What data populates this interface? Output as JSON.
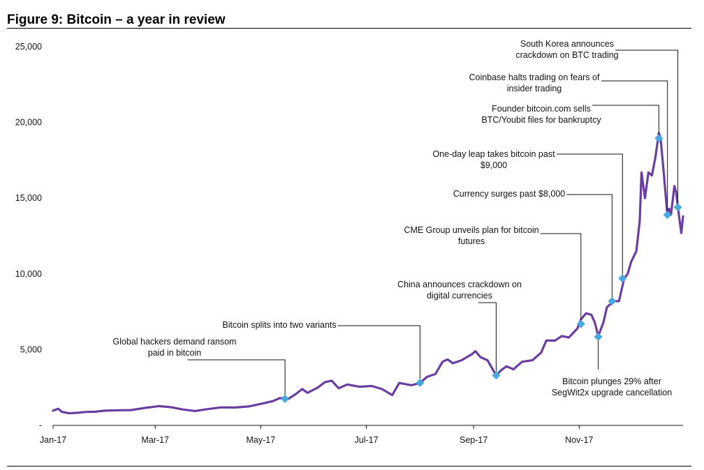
{
  "figure_title": "Figure 9: Bitcoin – a year in review",
  "colors": {
    "line": "#6a3da0",
    "marker": "#4aa8e0",
    "text": "#111111"
  },
  "chart_data": {
    "type": "line",
    "title": "Figure 9: Bitcoin – a year in review",
    "xlabel": "",
    "ylabel": "",
    "ylim": [
      0,
      25000
    ],
    "yticks": [
      0,
      5000,
      10000,
      15000,
      20000,
      25000
    ],
    "ytick_labels": [
      "-",
      "5,000",
      "10,000",
      "15,000",
      "20,000",
      "25,000"
    ],
    "xticks": [
      "2017-01-01",
      "2017-03-01",
      "2017-05-01",
      "2017-07-01",
      "2017-09-01",
      "2017-11-01"
    ],
    "xtick_labels": [
      "Jan-17",
      "Mar-17",
      "May-17",
      "Jul-17",
      "Sep-17",
      "Nov-17"
    ],
    "xlim": [
      "2017-01-01",
      "2017-12-31"
    ],
    "grid": false,
    "legend": "none",
    "series": [
      {
        "values": [
          [
            "2017-01-01",
            970
          ],
          [
            "2017-01-04",
            1100
          ],
          [
            "2017-01-06",
            900
          ],
          [
            "2017-01-10",
            800
          ],
          [
            "2017-01-15",
            830
          ],
          [
            "2017-01-20",
            890
          ],
          [
            "2017-01-25",
            900
          ],
          [
            "2017-01-31",
            970
          ],
          [
            "2017-02-08",
            1000
          ],
          [
            "2017-02-15",
            1010
          ],
          [
            "2017-02-23",
            1150
          ],
          [
            "2017-03-03",
            1270
          ],
          [
            "2017-03-10",
            1200
          ],
          [
            "2017-03-17",
            1050
          ],
          [
            "2017-03-24",
            950
          ],
          [
            "2017-03-31",
            1070
          ],
          [
            "2017-04-08",
            1190
          ],
          [
            "2017-04-16",
            1180
          ],
          [
            "2017-04-24",
            1250
          ],
          [
            "2017-05-01",
            1420
          ],
          [
            "2017-05-08",
            1600
          ],
          [
            "2017-05-12",
            1800
          ],
          [
            "2017-05-17",
            1750
          ],
          [
            "2017-05-21",
            2050
          ],
          [
            "2017-05-25",
            2400
          ],
          [
            "2017-05-28",
            2150
          ],
          [
            "2017-06-03",
            2500
          ],
          [
            "2017-06-07",
            2850
          ],
          [
            "2017-06-11",
            2950
          ],
          [
            "2017-06-15",
            2450
          ],
          [
            "2017-06-20",
            2700
          ],
          [
            "2017-06-27",
            2550
          ],
          [
            "2017-07-04",
            2600
          ],
          [
            "2017-07-10",
            2400
          ],
          [
            "2017-07-16",
            2000
          ],
          [
            "2017-07-20",
            2800
          ],
          [
            "2017-07-27",
            2650
          ],
          [
            "2017-08-01",
            2800
          ],
          [
            "2017-08-05",
            3200
          ],
          [
            "2017-08-10",
            3400
          ],
          [
            "2017-08-14",
            4200
          ],
          [
            "2017-08-17",
            4350
          ],
          [
            "2017-08-20",
            4100
          ],
          [
            "2017-08-25",
            4300
          ],
          [
            "2017-08-31",
            4700
          ],
          [
            "2017-09-02",
            4900
          ],
          [
            "2017-09-05",
            4500
          ],
          [
            "2017-09-09",
            4300
          ],
          [
            "2017-09-14",
            3300
          ],
          [
            "2017-09-17",
            3650
          ],
          [
            "2017-09-20",
            3900
          ],
          [
            "2017-09-24",
            3700
          ],
          [
            "2017-09-29",
            4200
          ],
          [
            "2017-10-05",
            4300
          ],
          [
            "2017-10-10",
            4800
          ],
          [
            "2017-10-13",
            5600
          ],
          [
            "2017-10-18",
            5600
          ],
          [
            "2017-10-22",
            5900
          ],
          [
            "2017-10-26",
            5800
          ],
          [
            "2017-10-31",
            6400
          ],
          [
            "2017-11-02",
            7000
          ],
          [
            "2017-11-05",
            7400
          ],
          [
            "2017-11-08",
            7300
          ],
          [
            "2017-11-10",
            6800
          ],
          [
            "2017-11-12",
            5900
          ],
          [
            "2017-11-15",
            6800
          ],
          [
            "2017-11-17",
            7800
          ],
          [
            "2017-11-21",
            8200
          ],
          [
            "2017-11-24",
            8200
          ],
          [
            "2017-11-27",
            9700
          ],
          [
            "2017-11-29",
            10000
          ],
          [
            "2017-12-01",
            10800
          ],
          [
            "2017-12-04",
            11500
          ],
          [
            "2017-12-06",
            13500
          ],
          [
            "2017-12-07",
            16700
          ],
          [
            "2017-12-09",
            15000
          ],
          [
            "2017-12-11",
            16700
          ],
          [
            "2017-12-13",
            16500
          ],
          [
            "2017-12-15",
            17700
          ],
          [
            "2017-12-17",
            19300
          ],
          [
            "2017-12-18",
            19000
          ],
          [
            "2017-12-20",
            16500
          ],
          [
            "2017-12-22",
            13800
          ],
          [
            "2017-12-23",
            14300
          ],
          [
            "2017-12-24",
            13900
          ],
          [
            "2017-12-26",
            15800
          ],
          [
            "2017-12-27",
            15400
          ],
          [
            "2017-12-28",
            14400
          ],
          [
            "2017-12-30",
            12700
          ],
          [
            "2017-12-31",
            13800
          ]
        ]
      }
    ],
    "annotations": [
      {
        "date": "2017-05-15",
        "value": 1750,
        "lines": [
          "Global hackers demand ransom",
          "paid in bitcoin"
        ]
      },
      {
        "date": "2017-08-01",
        "value": 2800,
        "lines": [
          "Bitcoin splits into two variants"
        ]
      },
      {
        "date": "2017-09-14",
        "value": 3300,
        "lines": [
          "China announces crackdown on",
          "digital currencies"
        ]
      },
      {
        "date": "2017-11-02",
        "value": 6700,
        "lines": [
          "CME Group unveils plan for bitcoin",
          "futures"
        ]
      },
      {
        "date": "2017-11-12",
        "value": 5850,
        "lines": [
          "Bitcoin plunges 29%    after",
          "SegWit2x upgrade cancellation"
        ]
      },
      {
        "date": "2017-11-20",
        "value": 8200,
        "lines": [
          "Currency surges past $8,000"
        ]
      },
      {
        "date": "2017-11-26",
        "value": 9700,
        "lines": [
          "One-day leap takes bitcoin past",
          "$9,000"
        ]
      },
      {
        "date": "2017-12-17",
        "value": 18950,
        "lines": [
          "Founder bitcoin.com sells",
          "BTC/Youbit files for bankruptcy"
        ]
      },
      {
        "date": "2017-12-22",
        "value": 13900,
        "lines": [
          "Coinbase halts trading on fears of",
          "insider trading"
        ]
      },
      {
        "date": "2017-12-28",
        "value": 14400,
        "lines": [
          "South Korea announces",
          "crackdown on BTC trading"
        ]
      }
    ]
  }
}
